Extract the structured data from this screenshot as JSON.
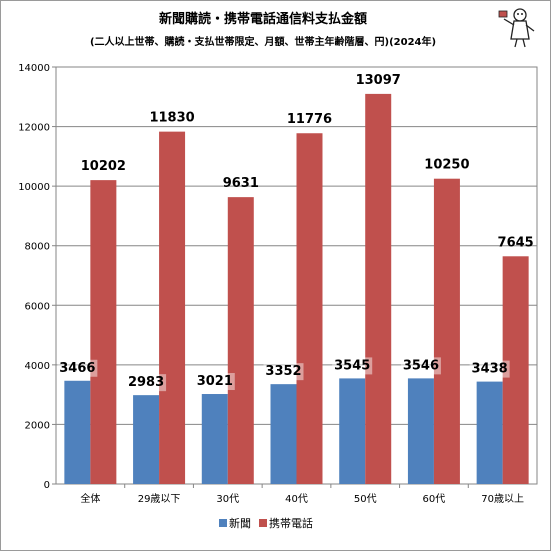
{
  "chart_data": {
    "type": "bar",
    "title": "新聞購読・携帯電話通信料支払金額",
    "subtitle": "(二人以上世帯、購読・支払世帯限定、月額、世帯主年齢階層、円)(2024年)",
    "categories": [
      "全体",
      "29歳以下",
      "30代",
      "40代",
      "50代",
      "60代",
      "70歳以上"
    ],
    "series": [
      {
        "name": "新聞",
        "color": "#4f81bd",
        "values": [
          3466,
          2983,
          3021,
          3352,
          3545,
          3546,
          3438
        ]
      },
      {
        "name": "携帯電話",
        "color": "#c0504d",
        "values": [
          10202,
          11830,
          9631,
          11776,
          13097,
          10250,
          7645
        ]
      }
    ],
    "ylim": [
      0,
      14000
    ],
    "yticks": [
      0,
      2000,
      4000,
      6000,
      8000,
      10000,
      12000,
      14000
    ],
    "xlabel": "",
    "ylabel": "",
    "grid": true,
    "legend_position": "bottom"
  }
}
